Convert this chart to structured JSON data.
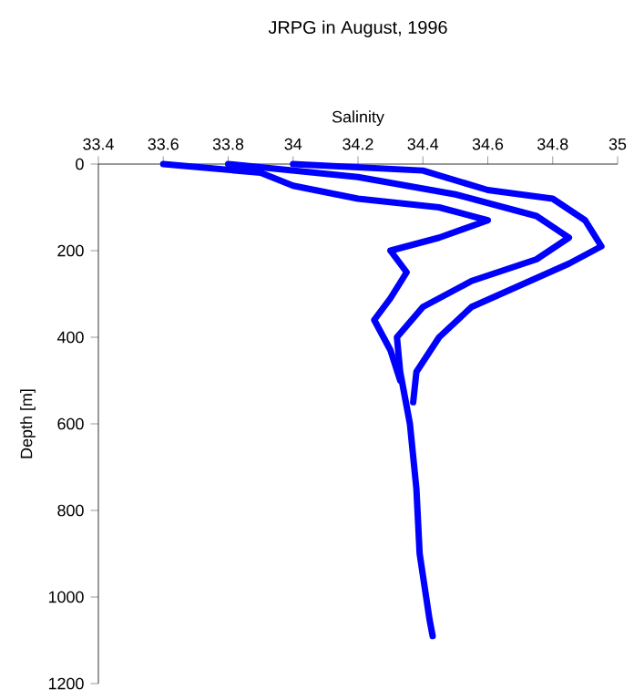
{
  "chart_data": {
    "type": "line",
    "title": "JRPG in August, 1996",
    "xlabel": "Salinity",
    "ylabel": "Depth [m]",
    "xlim": [
      33.4,
      35
    ],
    "xticks": [
      33.4,
      33.6,
      33.8,
      34,
      34.2,
      34.4,
      34.6,
      34.8,
      35
    ],
    "ylim": [
      1200,
      0
    ],
    "yticks": [
      0,
      200,
      400,
      600,
      800,
      1000,
      1200
    ],
    "marker": "none",
    "line_style": "solid",
    "series": [
      {
        "color": "#0000ff",
        "x": [
          33.6,
          33.9,
          34.0,
          34.2,
          34.45,
          34.6,
          34.45,
          34.3,
          34.35,
          34.3,
          34.25,
          34.3,
          34.33
        ],
        "values": [
          0,
          20,
          50,
          80,
          100,
          130,
          170,
          200,
          250,
          310,
          360,
          430,
          500
        ]
      },
      {
        "color": "#0000ff",
        "x": [
          33.8,
          34.2,
          34.5,
          34.75,
          34.85,
          34.75,
          34.55,
          34.4,
          34.32,
          34.33,
          34.36,
          34.38,
          34.39,
          34.42,
          34.43
        ],
        "values": [
          0,
          30,
          70,
          120,
          170,
          220,
          270,
          330,
          400,
          480,
          600,
          750,
          900,
          1050,
          1090
        ]
      },
      {
        "color": "#0000ff",
        "x": [
          34.0,
          34.4,
          34.6,
          34.8,
          34.9,
          34.95,
          34.85,
          34.7,
          34.55,
          34.45,
          34.38,
          34.37
        ],
        "values": [
          0,
          15,
          60,
          80,
          130,
          190,
          230,
          280,
          330,
          400,
          480,
          550
        ]
      }
    ]
  }
}
